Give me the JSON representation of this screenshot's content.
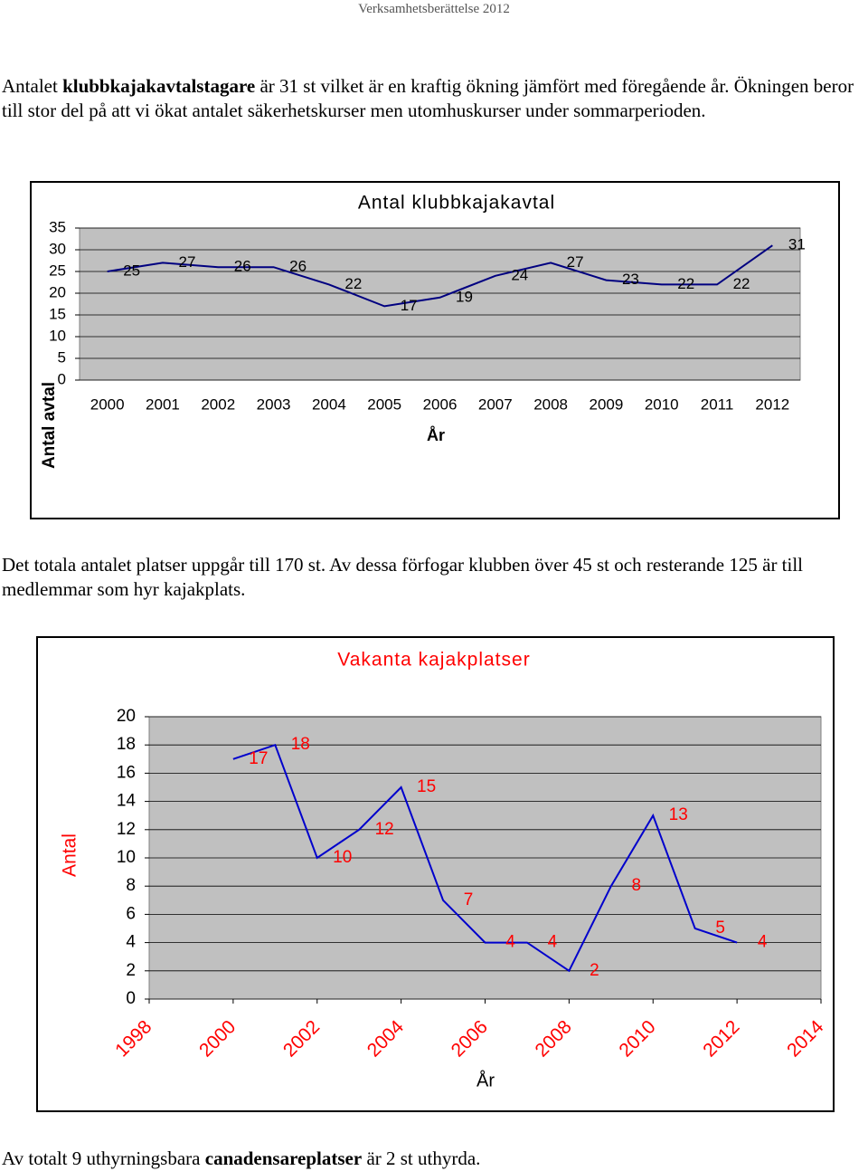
{
  "header": "Verksamhetsberättelse 2012",
  "paragraphs": [
    [
      "Antalet ",
      "klubbkajakavtalstagare",
      " är 31 st vilket är en kraftig ökning jämfört med föregående år. Ökningen beror till stor del på att vi ökat antalet säkerhetskurser men utomhuskurser under sommarperioden."
    ],
    [
      "Det totala antalet platser uppgår till 170 st. Av dessa förfogar klubben över 45 st och resterande 125 är till medlemmar som hyr kajakplats."
    ],
    [
      "Av totalt 9 uthyrningsbara ",
      "canadensareplatser",
      " är 2 st uthyrda."
    ]
  ],
  "chart_data": [
    {
      "type": "line",
      "title": "Antal klubbkajakavtal",
      "x_label": "År",
      "y_label": "Antal avtal",
      "categories": [
        "2000",
        "2001",
        "2002",
        "2003",
        "2004",
        "2005",
        "2006",
        "2007",
        "2008",
        "2009",
        "2010",
        "2011",
        "2012"
      ],
      "values": [
        25,
        27,
        26,
        26,
        22,
        17,
        19,
        24,
        27,
        23,
        22,
        22,
        31
      ],
      "color": "#000080",
      "label_color": "#000000",
      "title_color": "#000000",
      "ylim": [
        0,
        35
      ],
      "yticks": [
        0,
        5,
        10,
        15,
        20,
        25,
        30,
        35
      ],
      "grid": true
    },
    {
      "type": "line",
      "title": "Vakanta kajakplatser",
      "x_label": "År",
      "y_label": "Antal",
      "x": [
        2000,
        2001,
        2002,
        2003,
        2004,
        2005,
        2006,
        2007,
        2008,
        2009,
        2010,
        2011,
        2012
      ],
      "values": [
        17,
        18,
        10,
        12,
        15,
        7,
        4,
        4,
        2,
        8,
        13,
        5,
        4
      ],
      "color": "#0000cc",
      "label_color": "#ff0000",
      "title_color": "#ff0000",
      "xlim": [
        1998,
        2014
      ],
      "xticks": [
        1998,
        2000,
        2002,
        2004,
        2006,
        2008,
        2010,
        2012,
        2014
      ],
      "ylim": [
        0,
        20
      ],
      "yticks": [
        0,
        2,
        4,
        6,
        8,
        10,
        12,
        14,
        16,
        18,
        20
      ],
      "grid": true
    }
  ]
}
